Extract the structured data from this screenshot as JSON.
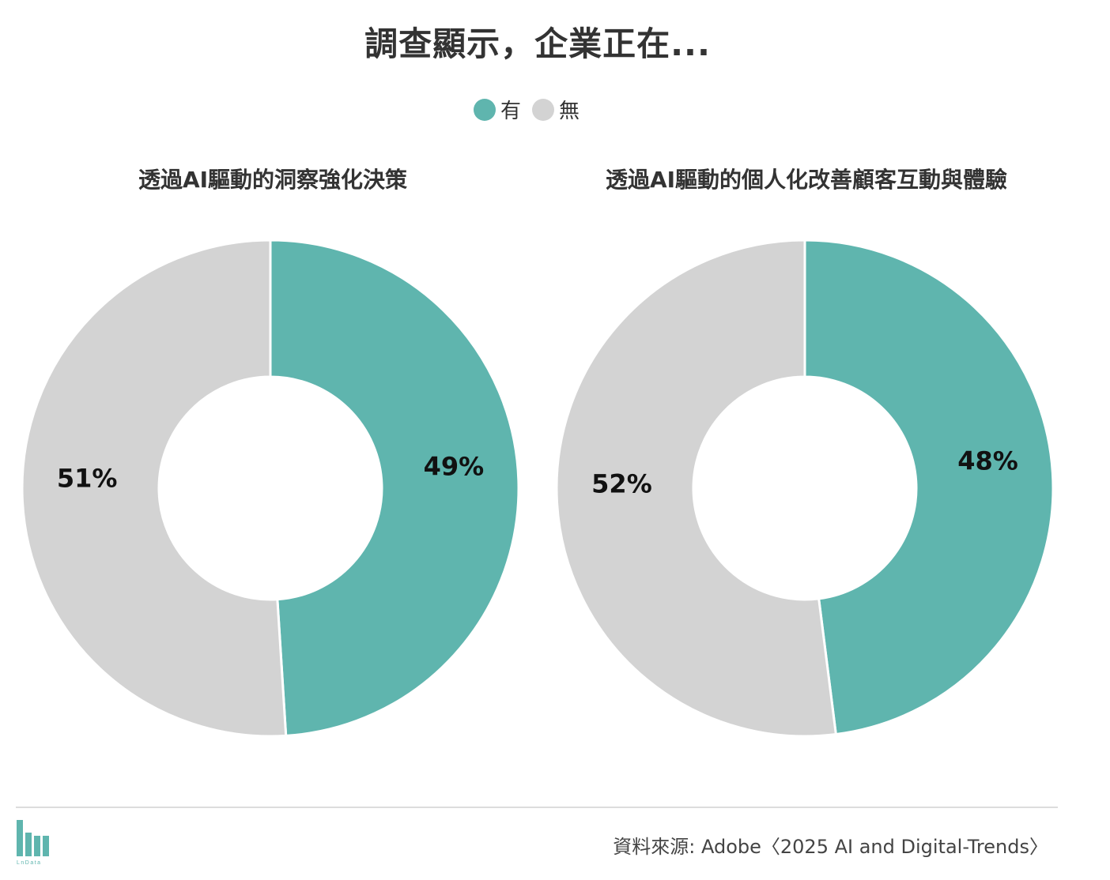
{
  "title": "調查顯示，企業正在...",
  "legend": {
    "items": [
      {
        "label": "有",
        "color": "#5fb5ae"
      },
      {
        "label": "無",
        "color": "#d3d3d3"
      }
    ]
  },
  "chart_data": [
    {
      "type": "pie",
      "title": "透過AI驅動的洞察強化決策",
      "slices": [
        {
          "label": "有",
          "value": 49,
          "display": "49%",
          "color": "#5fb5ae"
        },
        {
          "label": "無",
          "value": 51,
          "display": "51%",
          "color": "#d3d3d3"
        }
      ],
      "donut": true
    },
    {
      "type": "pie",
      "title": "透過AI驅動的個人化改善顧客互動與體驗",
      "slices": [
        {
          "label": "有",
          "value": 48,
          "display": "48%",
          "color": "#5fb5ae"
        },
        {
          "label": "無",
          "value": 52,
          "display": "52%",
          "color": "#d3d3d3"
        }
      ],
      "donut": true
    }
  ],
  "footer": {
    "source": "資料來源: Adobe〈2025 AI and Digital-Trends〉",
    "logo_icon": "bar-logo-icon",
    "logo_text": "LnData"
  }
}
